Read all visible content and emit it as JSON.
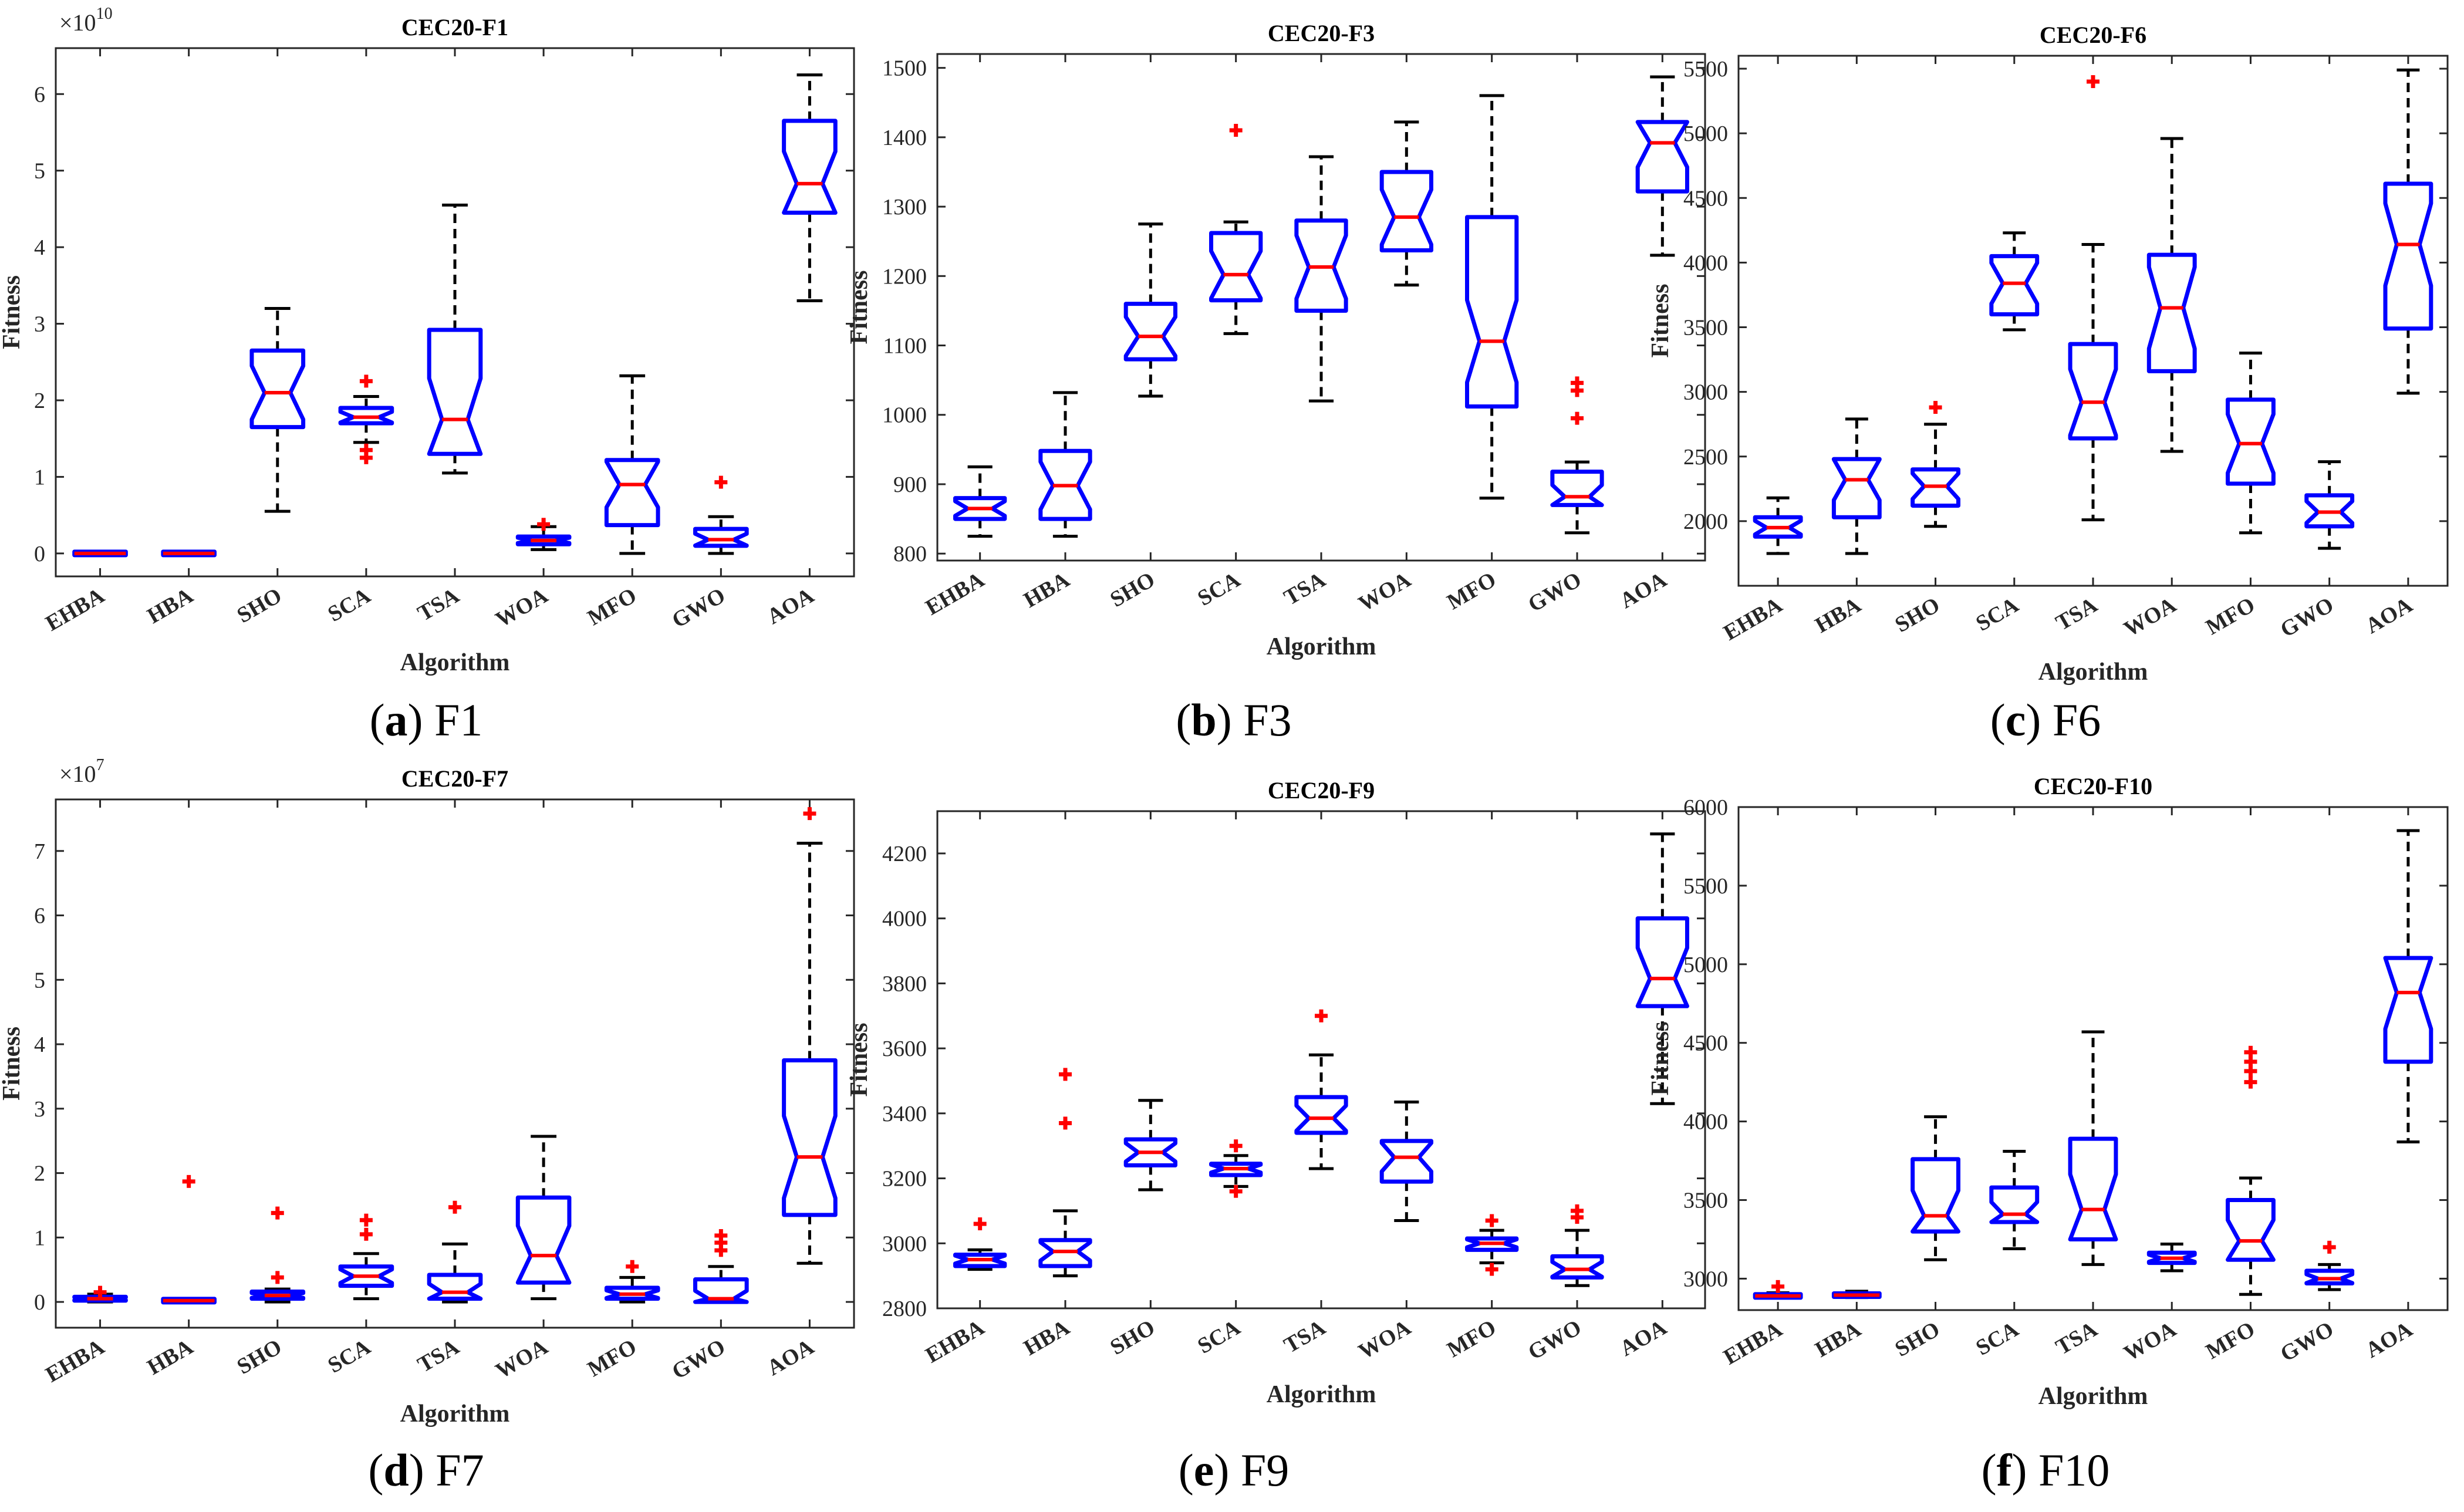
{
  "figure": {
    "captions": [
      {
        "letter": "a",
        "text": "F1"
      },
      {
        "letter": "b",
        "text": "F3"
      },
      {
        "letter": "c",
        "text": "F6"
      },
      {
        "letter": "d",
        "text": "F7"
      },
      {
        "letter": "e",
        "text": "F9"
      },
      {
        "letter": "f",
        "text": "F10"
      }
    ]
  },
  "colors": {
    "box": "#0000ff",
    "median": "#ff0000",
    "whisker": "#000000",
    "outlier": "#ff0000"
  },
  "chart_data": [
    {
      "type": "box",
      "title": "CEC20-F1",
      "xlabel": "Algorithm",
      "ylabel": "Fitness",
      "multiplier": "×10^10",
      "ylim": [
        -0.3,
        6.6
      ],
      "yticks": [
        0,
        1,
        2,
        3,
        4,
        5,
        6
      ],
      "notched": true,
      "categories": [
        "EHBA",
        "HBA",
        "SHO",
        "SCA",
        "TSA",
        "WOA",
        "MFO",
        "GWO",
        "AOA"
      ],
      "boxes": [
        {
          "lw": 0,
          "q1": 0,
          "med": 0,
          "q3": 0,
          "uw": 0,
          "outliers": []
        },
        {
          "lw": 0,
          "q1": 0,
          "med": 0,
          "q3": 0,
          "uw": 0,
          "outliers": []
        },
        {
          "lw": 0.55,
          "q1": 1.65,
          "med": 2.1,
          "q3": 2.65,
          "uw": 3.2,
          "outliers": []
        },
        {
          "lw": 1.45,
          "q1": 1.7,
          "med": 1.78,
          "q3": 1.9,
          "uw": 2.05,
          "outliers": [
            2.25,
            1.35,
            1.25
          ]
        },
        {
          "lw": 1.05,
          "q1": 1.3,
          "med": 1.75,
          "q3": 2.92,
          "uw": 4.55,
          "outliers": []
        },
        {
          "lw": 0.05,
          "q1": 0.12,
          "med": 0.17,
          "q3": 0.22,
          "uw": 0.35,
          "outliers": [
            0.38
          ]
        },
        {
          "lw": 0,
          "q1": 0.37,
          "med": 0.9,
          "q3": 1.22,
          "uw": 2.32,
          "outliers": []
        },
        {
          "lw": 0,
          "q1": 0.1,
          "med": 0.18,
          "q3": 0.32,
          "uw": 0.48,
          "outliers": [
            0.93
          ]
        },
        {
          "lw": 3.3,
          "q1": 4.45,
          "med": 4.83,
          "q3": 5.65,
          "uw": 6.25,
          "outliers": []
        }
      ]
    },
    {
      "type": "box",
      "title": "CEC20-F3",
      "xlabel": "Algorithm",
      "ylabel": "Fitness",
      "ylim": [
        790,
        1520
      ],
      "yticks": [
        800,
        900,
        1000,
        1100,
        1200,
        1300,
        1400,
        1500
      ],
      "notched": true,
      "categories": [
        "EHBA",
        "HBA",
        "SHO",
        "SCA",
        "TSA",
        "WOA",
        "MFO",
        "GWO",
        "AOA"
      ],
      "boxes": [
        {
          "lw": 825,
          "q1": 850,
          "med": 865,
          "q3": 880,
          "uw": 925,
          "outliers": []
        },
        {
          "lw": 825,
          "q1": 850,
          "med": 898,
          "q3": 948,
          "uw": 1032,
          "outliers": []
        },
        {
          "lw": 1027,
          "q1": 1080,
          "med": 1113,
          "q3": 1160,
          "uw": 1275,
          "outliers": []
        },
        {
          "lw": 1117,
          "q1": 1165,
          "med": 1202,
          "q3": 1262,
          "uw": 1278,
          "outliers": [
            1410
          ]
        },
        {
          "lw": 1020,
          "q1": 1150,
          "med": 1213,
          "q3": 1280,
          "uw": 1372,
          "outliers": []
        },
        {
          "lw": 1187,
          "q1": 1237,
          "med": 1285,
          "q3": 1350,
          "uw": 1422,
          "outliers": []
        },
        {
          "lw": 880,
          "q1": 1012,
          "med": 1106,
          "q3": 1285,
          "uw": 1460,
          "outliers": []
        },
        {
          "lw": 830,
          "q1": 870,
          "med": 882,
          "q3": 918,
          "uw": 932,
          "outliers": [
            995,
            1035,
            1046
          ]
        },
        {
          "lw": 1230,
          "q1": 1322,
          "med": 1392,
          "q3": 1422,
          "uw": 1487,
          "outliers": []
        }
      ]
    },
    {
      "type": "box",
      "title": "CEC20-F6",
      "xlabel": "Algorithm",
      "ylabel": "Fitness",
      "ylim": [
        1500,
        5600
      ],
      "yticks": [
        2000,
        2500,
        3000,
        3500,
        4000,
        4500,
        5000,
        5500
      ],
      "notched": true,
      "categories": [
        "EHBA",
        "HBA",
        "SHO",
        "SCA",
        "TSA",
        "WOA",
        "MFO",
        "GWO",
        "AOA"
      ],
      "boxes": [
        {
          "lw": 1750,
          "q1": 1880,
          "med": 1950,
          "q3": 2030,
          "uw": 2180,
          "outliers": []
        },
        {
          "lw": 1750,
          "q1": 2030,
          "med": 2320,
          "q3": 2480,
          "uw": 2790,
          "outliers": []
        },
        {
          "lw": 1960,
          "q1": 2120,
          "med": 2270,
          "q3": 2400,
          "uw": 2750,
          "outliers": [
            2880
          ]
        },
        {
          "lw": 3480,
          "q1": 3600,
          "med": 3840,
          "q3": 4050,
          "uw": 4230,
          "outliers": []
        },
        {
          "lw": 2010,
          "q1": 2640,
          "med": 2920,
          "q3": 3370,
          "uw": 4140,
          "outliers": [
            5400
          ]
        },
        {
          "lw": 2540,
          "q1": 3160,
          "med": 3650,
          "q3": 4060,
          "uw": 4960,
          "outliers": []
        },
        {
          "lw": 1910,
          "q1": 2290,
          "med": 2600,
          "q3": 2940,
          "uw": 3300,
          "outliers": []
        },
        {
          "lw": 1790,
          "q1": 1960,
          "med": 2070,
          "q3": 2200,
          "uw": 2460,
          "outliers": []
        },
        {
          "lw": 2990,
          "q1": 3490,
          "med": 4140,
          "q3": 4610,
          "uw": 5490,
          "outliers": []
        }
      ]
    },
    {
      "type": "box",
      "title": "CEC20-F7",
      "xlabel": "Algorithm",
      "ylabel": "Fitness",
      "multiplier": "×10^7",
      "ylim": [
        -0.4,
        7.8
      ],
      "yticks": [
        0,
        1,
        2,
        3,
        4,
        5,
        6,
        7
      ],
      "notched": true,
      "categories": [
        "EHBA",
        "HBA",
        "SHO",
        "SCA",
        "TSA",
        "WOA",
        "MFO",
        "GWO",
        "AOA"
      ],
      "boxes": [
        {
          "lw": 0,
          "q1": 0.02,
          "med": 0.05,
          "q3": 0.08,
          "uw": 0.12,
          "outliers": [
            0.15
          ]
        },
        {
          "lw": 0,
          "q1": 0.01,
          "med": 0.02,
          "q3": 0.03,
          "uw": 0.05,
          "outliers": [
            1.87
          ]
        },
        {
          "lw": 0,
          "q1": 0.05,
          "med": 0.1,
          "q3": 0.16,
          "uw": 0.2,
          "outliers": [
            0.38,
            1.38
          ]
        },
        {
          "lw": 0.05,
          "q1": 0.25,
          "med": 0.4,
          "q3": 0.55,
          "uw": 0.75,
          "outliers": [
            1.05,
            1.27
          ]
        },
        {
          "lw": 0,
          "q1": 0.05,
          "med": 0.15,
          "q3": 0.42,
          "uw": 0.9,
          "outliers": [
            1.47
          ]
        },
        {
          "lw": 0.05,
          "q1": 0.3,
          "med": 0.72,
          "q3": 1.62,
          "uw": 2.57,
          "outliers": []
        },
        {
          "lw": 0,
          "q1": 0.05,
          "med": 0.12,
          "q3": 0.22,
          "uw": 0.38,
          "outliers": [
            0.55
          ]
        },
        {
          "lw": 0,
          "q1": 0,
          "med": 0.05,
          "q3": 0.35,
          "uw": 0.55,
          "outliers": [
            0.8,
            0.92,
            1.03
          ]
        },
        {
          "lw": 0.6,
          "q1": 1.35,
          "med": 2.25,
          "q3": 3.75,
          "uw": 7.12,
          "outliers": [
            7.58
          ]
        }
      ]
    },
    {
      "type": "box",
      "title": "CEC20-F9",
      "xlabel": "Algorithm",
      "ylabel": "Fitness",
      "ylim": [
        2800,
        4330
      ],
      "yticks": [
        2800,
        3000,
        3200,
        3400,
        3600,
        3800,
        4000,
        4200
      ],
      "notched": true,
      "categories": [
        "EHBA",
        "HBA",
        "SHO",
        "SCA",
        "TSA",
        "WOA",
        "MFO",
        "GWO",
        "AOA"
      ],
      "boxes": [
        {
          "lw": 2920,
          "q1": 2930,
          "med": 2950,
          "q3": 2965,
          "uw": 2980,
          "outliers": [
            3060
          ]
        },
        {
          "lw": 2900,
          "q1": 2930,
          "med": 2975,
          "q3": 3010,
          "uw": 3100,
          "outliers": [
            3370,
            3520
          ]
        },
        {
          "lw": 3165,
          "q1": 3240,
          "med": 3280,
          "q3": 3320,
          "uw": 3440,
          "outliers": []
        },
        {
          "lw": 3175,
          "q1": 3210,
          "med": 3230,
          "q3": 3245,
          "uw": 3270,
          "outliers": [
            3300,
            3160
          ]
        },
        {
          "lw": 3230,
          "q1": 3340,
          "med": 3385,
          "q3": 3450,
          "uw": 3580,
          "outliers": [
            3700
          ]
        },
        {
          "lw": 3070,
          "q1": 3190,
          "med": 3265,
          "q3": 3315,
          "uw": 3435,
          "outliers": []
        },
        {
          "lw": 2940,
          "q1": 2980,
          "med": 3000,
          "q3": 3015,
          "uw": 3040,
          "outliers": [
            3070,
            2920
          ]
        },
        {
          "lw": 2870,
          "q1": 2895,
          "med": 2920,
          "q3": 2960,
          "uw": 3040,
          "outliers": [
            3080,
            3100
          ]
        },
        {
          "lw": 3430,
          "q1": 3730,
          "med": 3815,
          "q3": 4000,
          "uw": 4260,
          "outliers": []
        }
      ]
    },
    {
      "type": "box",
      "title": "CEC20-F10",
      "xlabel": "Algorithm",
      "ylabel": "Fitness",
      "ylim": [
        2800,
        6000
      ],
      "yticks": [
        3000,
        3500,
        4000,
        4500,
        5000,
        5500,
        6000
      ],
      "notched": true,
      "categories": [
        "EHBA",
        "HBA",
        "SHO",
        "SCA",
        "TSA",
        "WOA",
        "MFO",
        "GWO",
        "AOA"
      ],
      "boxes": [
        {
          "lw": 2880,
          "q1": 2885,
          "med": 2890,
          "q3": 2900,
          "uw": 2910,
          "outliers": [
            2950
          ]
        },
        {
          "lw": 2880,
          "q1": 2885,
          "med": 2895,
          "q3": 2905,
          "uw": 2920,
          "outliers": []
        },
        {
          "lw": 3120,
          "q1": 3300,
          "med": 3400,
          "q3": 3760,
          "uw": 4030,
          "outliers": []
        },
        {
          "lw": 3190,
          "q1": 3360,
          "med": 3410,
          "q3": 3580,
          "uw": 3810,
          "outliers": []
        },
        {
          "lw": 3090,
          "q1": 3250,
          "med": 3440,
          "q3": 3890,
          "uw": 4570,
          "outliers": []
        },
        {
          "lw": 3050,
          "q1": 3100,
          "med": 3130,
          "q3": 3165,
          "uw": 3220,
          "outliers": []
        },
        {
          "lw": 2900,
          "q1": 3120,
          "med": 3240,
          "q3": 3500,
          "uw": 3640,
          "outliers": [
            4250,
            4320,
            4380,
            4440
          ]
        },
        {
          "lw": 2930,
          "q1": 2970,
          "med": 3000,
          "q3": 3050,
          "uw": 3090,
          "outliers": [
            3200
          ]
        },
        {
          "lw": 3870,
          "q1": 4380,
          "med": 4820,
          "q3": 5040,
          "uw": 5850,
          "outliers": []
        }
      ]
    }
  ]
}
